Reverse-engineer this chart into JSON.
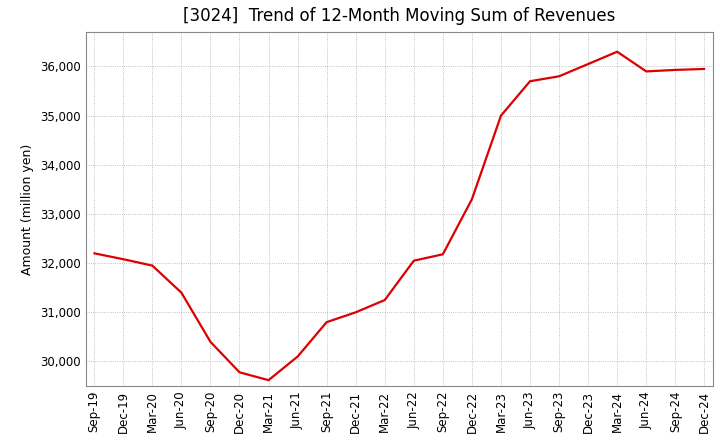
{
  "title": "[3024]  Trend of 12-Month Moving Sum of Revenues",
  "ylabel": "Amount (million yen)",
  "line_color": "#dd0000",
  "background_color": "#ffffff",
  "plot_bg_color": "#ffffff",
  "grid_color": "#999999",
  "xlabels": [
    "Sep-19",
    "Dec-19",
    "Mar-20",
    "Jun-20",
    "Sep-20",
    "Dec-20",
    "Mar-21",
    "Jun-21",
    "Sep-21",
    "Dec-21",
    "Mar-22",
    "Jun-22",
    "Sep-22",
    "Dec-22",
    "Mar-23",
    "Jun-23",
    "Sep-23",
    "Dec-23",
    "Mar-24",
    "Jun-24",
    "Sep-24",
    "Dec-24"
  ],
  "yvalues": [
    32200,
    32080,
    31950,
    31400,
    30400,
    29780,
    29620,
    30100,
    30800,
    31000,
    31250,
    32050,
    32180,
    33300,
    35000,
    35700,
    35800,
    36050,
    36300,
    35900,
    35930,
    35950
  ],
  "ylim": [
    29500,
    36700
  ],
  "yticks": [
    30000,
    31000,
    32000,
    33000,
    34000,
    35000,
    36000
  ],
  "title_fontsize": 12,
  "axis_label_fontsize": 9,
  "tick_fontsize": 8.5
}
